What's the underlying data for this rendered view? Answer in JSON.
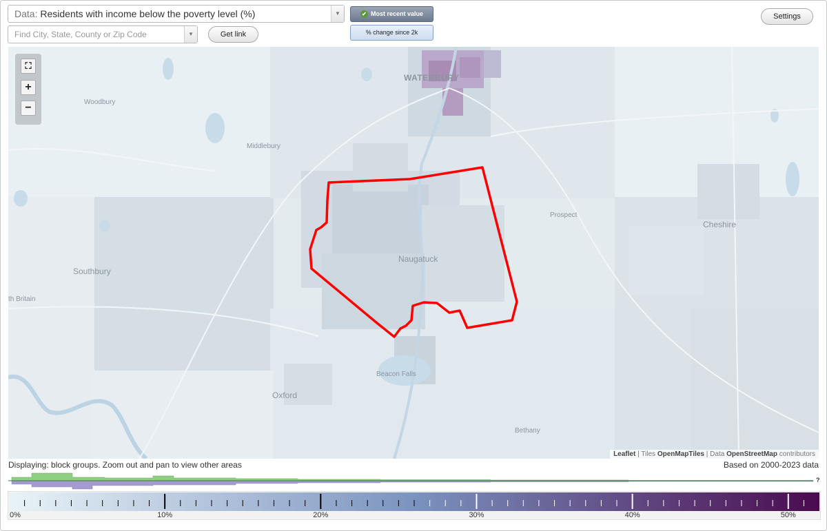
{
  "data_select": {
    "prefix": "Data:",
    "value": "Residents with income below the poverty level (%)"
  },
  "search": {
    "placeholder": "Find City, State, County or Zip Code"
  },
  "buttons": {
    "get_link": "Get link",
    "settings": "Settings"
  },
  "toggles": {
    "most_recent": "Most recent value",
    "pct_change": "% change since 2k",
    "active": "most_recent"
  },
  "map": {
    "zoom_controls": {
      "fullscreen": "⛶",
      "zoom_in": "+",
      "zoom_out": "−"
    },
    "towns": {
      "waterbury": "WATERBURY",
      "woodbury": "Woodbury",
      "middlebury": "Middlebury",
      "prospect": "Prospect",
      "cheshire": "Cheshire",
      "southbury": "Southbury",
      "naugatuck": "Naugatuck",
      "new_britain": "th Britain",
      "beacon_falls": "Beacon Falls",
      "oxford": "Oxford",
      "bethany": "Bethany"
    },
    "attribution": {
      "leaflet": "Leaflet",
      "tiles_prefix": "Tiles",
      "tiles": "OpenMapTiles",
      "data_prefix": "Data",
      "data": "OpenStreetMap",
      "suffix": "contributors"
    },
    "selection_color": "#ff0000"
  },
  "status": {
    "displaying": "Displaying: block groups. Zoom out and pan to view other areas",
    "based_on": "Based on 2000-2023 data"
  },
  "histogram": {
    "unknown_label": "?",
    "upper_color": "#8fcf84",
    "lower_color": "#a49bd0"
  },
  "legend": {
    "tick_labels": [
      "0%",
      "10%",
      "20%",
      "30%",
      "40%",
      "50%"
    ],
    "tick_values": [
      0,
      10,
      20,
      30,
      40,
      50
    ],
    "range": [
      0,
      52
    ],
    "color_low": "#e9f3f7",
    "color_mid": "#7b93bf",
    "color_high": "#4a0a4e"
  }
}
